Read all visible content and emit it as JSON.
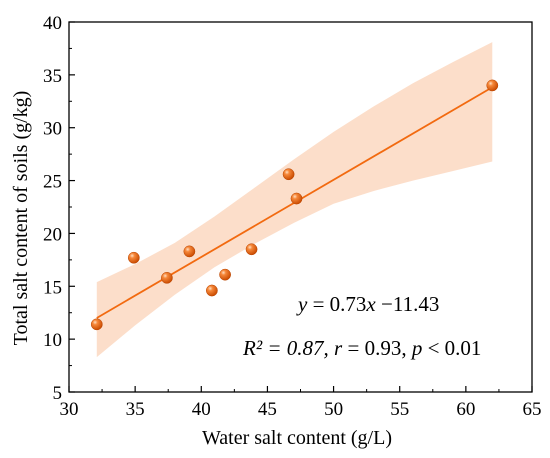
{
  "chart_data": {
    "type": "scatter",
    "xlabel": "Water salt content (g/L)",
    "ylabel": "Total salt content of soils (g/kg)",
    "xlim": [
      30,
      65
    ],
    "ylim": [
      5,
      40
    ],
    "xticks": [
      30,
      35,
      40,
      45,
      50,
      55,
      60,
      65
    ],
    "yticks": [
      5,
      10,
      15,
      20,
      25,
      30,
      35,
      40
    ],
    "grid": false,
    "points": [
      {
        "x": 32.1,
        "y": 11.4
      },
      {
        "x": 34.9,
        "y": 17.7
      },
      {
        "x": 37.4,
        "y": 15.8
      },
      {
        "x": 39.1,
        "y": 18.3
      },
      {
        "x": 40.8,
        "y": 14.6
      },
      {
        "x": 41.8,
        "y": 16.1
      },
      {
        "x": 43.8,
        "y": 18.5
      },
      {
        "x": 46.6,
        "y": 25.6
      },
      {
        "x": 47.2,
        "y": 23.3
      },
      {
        "x": 62.0,
        "y": 34.0
      }
    ],
    "fit": {
      "slope": 0.73,
      "intercept": -11.43,
      "x_range": [
        32.1,
        62.0
      ]
    },
    "confidence_band": [
      {
        "x": 32.1,
        "lower": 8.3,
        "upper": 15.4
      },
      {
        "x": 35,
        "lower": 11.3,
        "upper": 17.1
      },
      {
        "x": 38,
        "lower": 14.2,
        "upper": 19.1
      },
      {
        "x": 41,
        "lower": 16.8,
        "upper": 21.6
      },
      {
        "x": 44,
        "lower": 19.0,
        "upper": 24.3
      },
      {
        "x": 47,
        "lower": 21.0,
        "upper": 27.0
      },
      {
        "x": 50,
        "lower": 22.8,
        "upper": 29.6
      },
      {
        "x": 53,
        "lower": 24.0,
        "upper": 32.0
      },
      {
        "x": 56,
        "lower": 25.0,
        "upper": 34.2
      },
      {
        "x": 59,
        "lower": 25.9,
        "upper": 36.2
      },
      {
        "x": 62.0,
        "lower": 26.8,
        "upper": 38.1
      }
    ],
    "annotations": {
      "equation": {
        "y": "y",
        "eq": " = 0.73",
        "x": "x",
        "rest": " −11.43"
      },
      "stats": {
        "r2": "R² = 0.87, ",
        "r": "r",
        "r_rest": " = 0.93, ",
        "p": "p",
        "p_rest": " < 0.01"
      }
    },
    "colors": {
      "point": "#ef6c14",
      "line": "#f26a10",
      "band": "#fbd3b8"
    }
  }
}
